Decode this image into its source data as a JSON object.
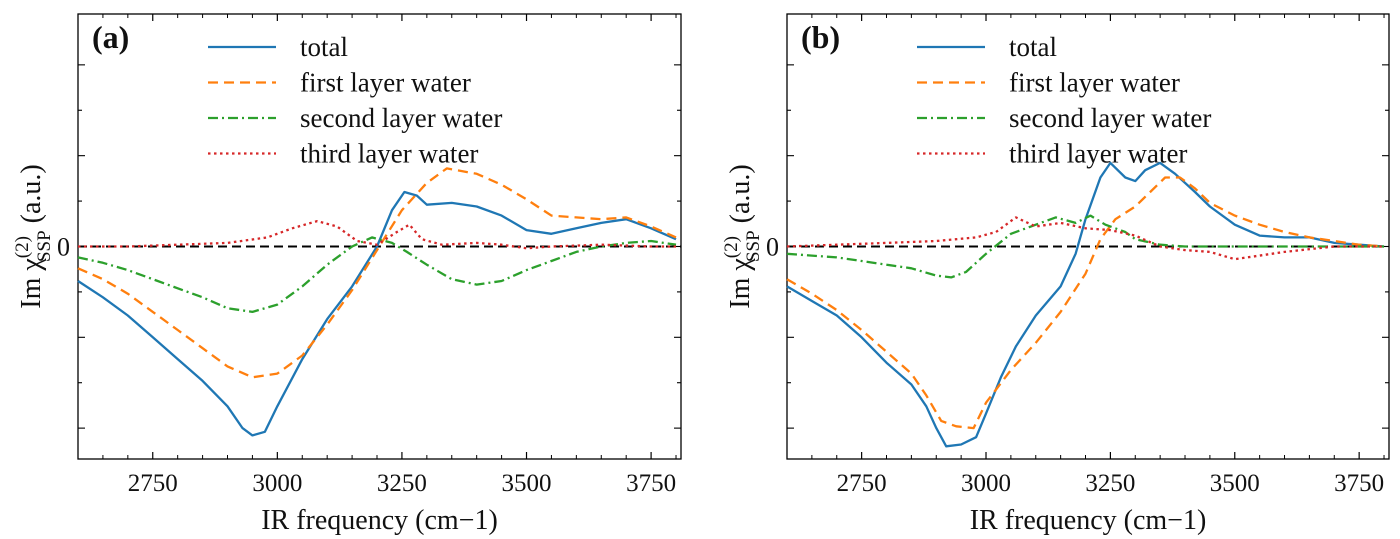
{
  "chart_data": [
    {
      "type": "line",
      "panel_label": "(a)",
      "xlabel": "IR frequency (cm−1)",
      "ylabel": "Im χ(2)SSP (a.u.)",
      "ylabel_parts": {
        "base": "Im χ",
        "sup": "(2)",
        "sub": "SSP",
        "unit": " (a.u.)"
      },
      "xlim": [
        2600,
        3810
      ],
      "ylim": [
        -1.17,
        1.28
      ],
      "xticks": [
        2750,
        3000,
        3250,
        3500,
        3750
      ],
      "xtick_labels": [
        "2750",
        "3000",
        "3250",
        "3500",
        "3750"
      ],
      "ytick_label": "0",
      "zero_line": true,
      "legend_position": "top-center",
      "series": [
        {
          "name": "total",
          "color": "#1f77b4",
          "dash": "solid",
          "points": [
            [
              2600,
              -0.19
            ],
            [
              2650,
              -0.28
            ],
            [
              2700,
              -0.38
            ],
            [
              2750,
              -0.5
            ],
            [
              2800,
              -0.62
            ],
            [
              2850,
              -0.74
            ],
            [
              2900,
              -0.88
            ],
            [
              2930,
              -1.0
            ],
            [
              2950,
              -1.04
            ],
            [
              2975,
              -1.02
            ],
            [
              3000,
              -0.88
            ],
            [
              3050,
              -0.62
            ],
            [
              3100,
              -0.4
            ],
            [
              3150,
              -0.22
            ],
            [
              3200,
              0.0
            ],
            [
              3230,
              0.2
            ],
            [
              3255,
              0.3
            ],
            [
              3280,
              0.28
            ],
            [
              3300,
              0.23
            ],
            [
              3350,
              0.24
            ],
            [
              3400,
              0.22
            ],
            [
              3450,
              0.17
            ],
            [
              3500,
              0.09
            ],
            [
              3550,
              0.07
            ],
            [
              3600,
              0.1
            ],
            [
              3650,
              0.13
            ],
            [
              3700,
              0.15
            ],
            [
              3750,
              0.1
            ],
            [
              3800,
              0.04
            ]
          ]
        },
        {
          "name": "first layer water",
          "color": "#ff7f0e",
          "dash": "dashed",
          "points": [
            [
              2600,
              -0.12
            ],
            [
              2650,
              -0.18
            ],
            [
              2700,
              -0.26
            ],
            [
              2750,
              -0.36
            ],
            [
              2800,
              -0.46
            ],
            [
              2850,
              -0.56
            ],
            [
              2900,
              -0.66
            ],
            [
              2950,
              -0.72
            ],
            [
              3000,
              -0.7
            ],
            [
              3050,
              -0.6
            ],
            [
              3100,
              -0.43
            ],
            [
              3150,
              -0.24
            ],
            [
              3200,
              -0.02
            ],
            [
              3250,
              0.2
            ],
            [
              3300,
              0.35
            ],
            [
              3340,
              0.43
            ],
            [
              3400,
              0.4
            ],
            [
              3450,
              0.34
            ],
            [
              3500,
              0.26
            ],
            [
              3550,
              0.17
            ],
            [
              3600,
              0.16
            ],
            [
              3650,
              0.15
            ],
            [
              3700,
              0.16
            ],
            [
              3750,
              0.11
            ],
            [
              3800,
              0.05
            ]
          ]
        },
        {
          "name": "second layer water",
          "color": "#2ca02c",
          "dash": "dashdot",
          "points": [
            [
              2600,
              -0.06
            ],
            [
              2650,
              -0.09
            ],
            [
              2700,
              -0.13
            ],
            [
              2750,
              -0.18
            ],
            [
              2800,
              -0.23
            ],
            [
              2850,
              -0.28
            ],
            [
              2900,
              -0.34
            ],
            [
              2950,
              -0.36
            ],
            [
              3000,
              -0.32
            ],
            [
              3050,
              -0.22
            ],
            [
              3100,
              -0.1
            ],
            [
              3150,
              0.0
            ],
            [
              3190,
              0.05
            ],
            [
              3230,
              0.02
            ],
            [
              3260,
              -0.03
            ],
            [
              3300,
              -0.1
            ],
            [
              3350,
              -0.18
            ],
            [
              3400,
              -0.21
            ],
            [
              3450,
              -0.19
            ],
            [
              3500,
              -0.13
            ],
            [
              3550,
              -0.08
            ],
            [
              3600,
              -0.03
            ],
            [
              3650,
              0.0
            ],
            [
              3700,
              0.02
            ],
            [
              3750,
              0.03
            ],
            [
              3800,
              0.01
            ]
          ]
        },
        {
          "name": "third layer water",
          "color": "#d62728",
          "dash": "dotted",
          "points": [
            [
              2600,
              0.0
            ],
            [
              2700,
              0.0
            ],
            [
              2800,
              0.01
            ],
            [
              2900,
              0.02
            ],
            [
              2980,
              0.05
            ],
            [
              3030,
              0.1
            ],
            [
              3080,
              0.14
            ],
            [
              3120,
              0.11
            ],
            [
              3160,
              0.03
            ],
            [
              3200,
              0.01
            ],
            [
              3240,
              0.08
            ],
            [
              3265,
              0.12
            ],
            [
              3290,
              0.04
            ],
            [
              3330,
              0.01
            ],
            [
              3400,
              0.02
            ],
            [
              3450,
              0.01
            ],
            [
              3500,
              -0.01
            ],
            [
              3550,
              0.0
            ],
            [
              3650,
              0.01
            ],
            [
              3750,
              0.0
            ],
            [
              3800,
              0.0
            ]
          ]
        }
      ]
    },
    {
      "type": "line",
      "panel_label": "(b)",
      "xlabel": "IR frequency (cm−1)",
      "ylabel": "Im χ(2)SSP (a.u.)",
      "ylabel_parts": {
        "base": "Im χ",
        "sup": "(2)",
        "sub": "SSP",
        "unit": " (a.u.)"
      },
      "xlim": [
        2600,
        3810
      ],
      "ylim": [
        -1.17,
        1.28
      ],
      "xticks": [
        2750,
        3000,
        3250,
        3500,
        3750
      ],
      "xtick_labels": [
        "2750",
        "3000",
        "3250",
        "3500",
        "3750"
      ],
      "ytick_label": "0",
      "zero_line": true,
      "legend_position": "top-center",
      "series": [
        {
          "name": "total",
          "color": "#1f77b4",
          "dash": "solid",
          "points": [
            [
              2600,
              -0.22
            ],
            [
              2650,
              -0.3
            ],
            [
              2700,
              -0.38
            ],
            [
              2750,
              -0.5
            ],
            [
              2800,
              -0.64
            ],
            [
              2850,
              -0.76
            ],
            [
              2880,
              -0.88
            ],
            [
              2900,
              -1.0
            ],
            [
              2920,
              -1.1
            ],
            [
              2950,
              -1.09
            ],
            [
              2980,
              -1.05
            ],
            [
              3000,
              -0.92
            ],
            [
              3030,
              -0.72
            ],
            [
              3060,
              -0.55
            ],
            [
              3100,
              -0.38
            ],
            [
              3150,
              -0.22
            ],
            [
              3180,
              -0.04
            ],
            [
              3200,
              0.15
            ],
            [
              3230,
              0.38
            ],
            [
              3250,
              0.46
            ],
            [
              3280,
              0.38
            ],
            [
              3300,
              0.36
            ],
            [
              3320,
              0.42
            ],
            [
              3350,
              0.46
            ],
            [
              3380,
              0.4
            ],
            [
              3420,
              0.3
            ],
            [
              3450,
              0.22
            ],
            [
              3500,
              0.12
            ],
            [
              3550,
              0.06
            ],
            [
              3600,
              0.05
            ],
            [
              3650,
              0.05
            ],
            [
              3700,
              0.02
            ],
            [
              3750,
              0.01
            ],
            [
              3800,
              0.0
            ]
          ]
        },
        {
          "name": "first layer water",
          "color": "#ff7f0e",
          "dash": "dashed",
          "points": [
            [
              2600,
              -0.18
            ],
            [
              2650,
              -0.26
            ],
            [
              2700,
              -0.35
            ],
            [
              2750,
              -0.46
            ],
            [
              2800,
              -0.58
            ],
            [
              2850,
              -0.7
            ],
            [
              2880,
              -0.82
            ],
            [
              2910,
              -0.96
            ],
            [
              2940,
              -0.99
            ],
            [
              2975,
              -1.0
            ],
            [
              3000,
              -0.86
            ],
            [
              3050,
              -0.68
            ],
            [
              3100,
              -0.53
            ],
            [
              3150,
              -0.36
            ],
            [
              3200,
              -0.15
            ],
            [
              3230,
              0.04
            ],
            [
              3260,
              0.15
            ],
            [
              3300,
              0.22
            ],
            [
              3330,
              0.3
            ],
            [
              3360,
              0.38
            ],
            [
              3390,
              0.38
            ],
            [
              3420,
              0.32
            ],
            [
              3450,
              0.24
            ],
            [
              3500,
              0.17
            ],
            [
              3550,
              0.12
            ],
            [
              3600,
              0.08
            ],
            [
              3650,
              0.05
            ],
            [
              3700,
              0.03
            ],
            [
              3750,
              0.01
            ],
            [
              3800,
              0.0
            ]
          ]
        },
        {
          "name": "second layer water",
          "color": "#2ca02c",
          "dash": "dashdot",
          "points": [
            [
              2600,
              -0.04
            ],
            [
              2650,
              -0.05
            ],
            [
              2700,
              -0.06
            ],
            [
              2750,
              -0.08
            ],
            [
              2800,
              -0.1
            ],
            [
              2850,
              -0.12
            ],
            [
              2900,
              -0.16
            ],
            [
              2930,
              -0.17
            ],
            [
              2960,
              -0.14
            ],
            [
              3000,
              -0.04
            ],
            [
              3050,
              0.07
            ],
            [
              3100,
              0.12
            ],
            [
              3140,
              0.16
            ],
            [
              3180,
              0.13
            ],
            [
              3210,
              0.17
            ],
            [
              3240,
              0.12
            ],
            [
              3280,
              0.08
            ],
            [
              3300,
              0.04
            ],
            [
              3350,
              0.01
            ],
            [
              3400,
              0.0
            ],
            [
              3500,
              0.0
            ],
            [
              3600,
              0.0
            ],
            [
              3700,
              0.0
            ],
            [
              3800,
              0.0
            ]
          ]
        },
        {
          "name": "third layer water",
          "color": "#d62728",
          "dash": "dotted",
          "points": [
            [
              2600,
              0.0
            ],
            [
              2700,
              0.01
            ],
            [
              2800,
              0.02
            ],
            [
              2900,
              0.03
            ],
            [
              2980,
              0.05
            ],
            [
              3020,
              0.08
            ],
            [
              3060,
              0.16
            ],
            [
              3100,
              0.11
            ],
            [
              3150,
              0.13
            ],
            [
              3200,
              0.1
            ],
            [
              3250,
              0.09
            ],
            [
              3300,
              0.06
            ],
            [
              3350,
              0.0
            ],
            [
              3400,
              -0.02
            ],
            [
              3450,
              -0.03
            ],
            [
              3500,
              -0.07
            ],
            [
              3550,
              -0.05
            ],
            [
              3600,
              -0.03
            ],
            [
              3700,
              0.0
            ],
            [
              3800,
              0.0
            ]
          ]
        }
      ]
    }
  ]
}
